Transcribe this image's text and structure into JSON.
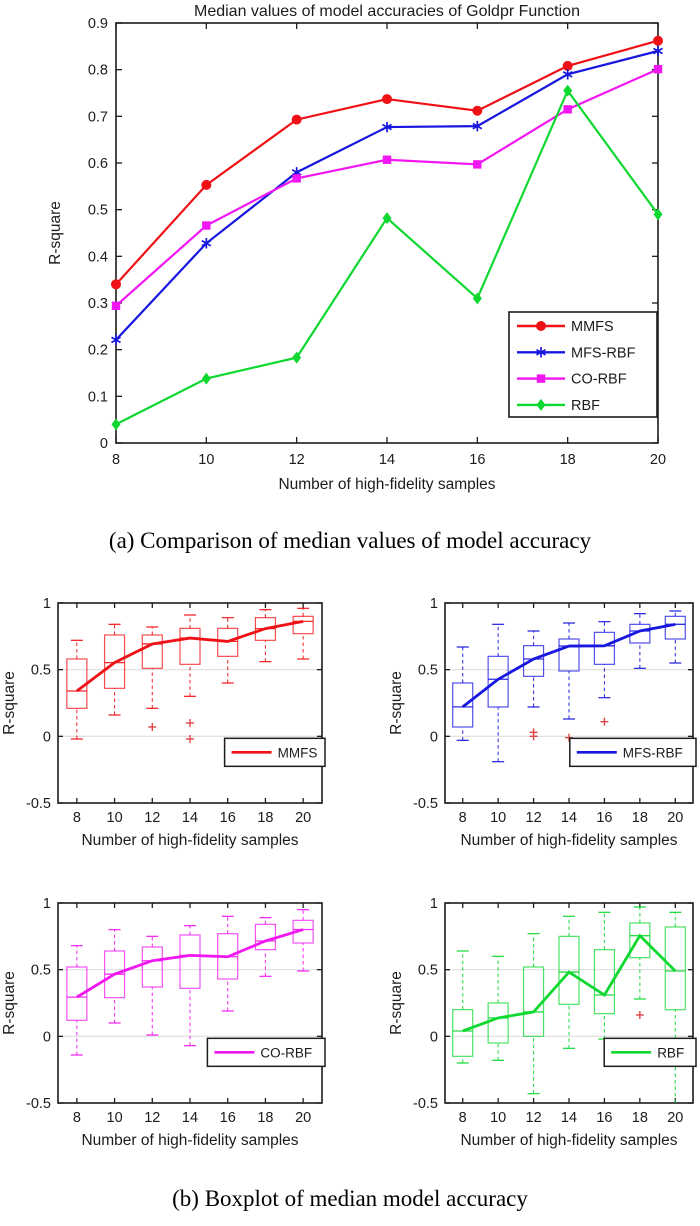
{
  "page": {
    "caption_a": "(a) Comparison of median values of model accuracy",
    "caption_b": "(b) Boxplot of median model accuracy"
  },
  "colors": {
    "mmfs": "#f01116",
    "mfs_rbf": "#1717e0",
    "co_rbf": "#f217f2",
    "rbf": "#0fd830",
    "outlier": "#e04545",
    "gridline": "#dedede",
    "axis": "#1c1c1c"
  },
  "chart_data": [
    {
      "id": "median-line-chart",
      "type": "line",
      "title": "Median values of model accuracies of Goldpr Function",
      "xlabel": "Number of high-fidelity samples",
      "ylabel": "R-square",
      "x": [
        8,
        10,
        12,
        14,
        16,
        18,
        20
      ],
      "xlim": [
        8,
        20
      ],
      "ylim": [
        0,
        0.9
      ],
      "yticks": [
        0,
        0.1,
        0.2,
        0.3,
        0.4,
        0.5,
        0.6,
        0.7,
        0.8,
        0.9
      ],
      "grid": false,
      "legend_position": "lower right",
      "series": [
        {
          "name": "MMFS",
          "color": "#f01116",
          "marker": "circle",
          "values": [
            0.34,
            0.553,
            0.693,
            0.737,
            0.712,
            0.808,
            0.862
          ]
        },
        {
          "name": "MFS-RBF",
          "color": "#1717e0",
          "marker": "asterisk",
          "values": [
            0.221,
            0.428,
            0.58,
            0.677,
            0.679,
            0.79,
            0.84
          ]
        },
        {
          "name": "CO-RBF",
          "color": "#f217f2",
          "marker": "square",
          "values": [
            0.294,
            0.466,
            0.567,
            0.607,
            0.597,
            0.715,
            0.801
          ]
        },
        {
          "name": "RBF",
          "color": "#0fd830",
          "marker": "diamond",
          "values": [
            0.04,
            0.138,
            0.183,
            0.482,
            0.31,
            0.755,
            0.49
          ]
        }
      ]
    },
    {
      "id": "boxplot-mmfs",
      "type": "boxplot",
      "name": "MMFS",
      "color": "#f01116",
      "xlabel": "Number of high-fidelity samples",
      "ylabel": "R-square",
      "categories": [
        8,
        10,
        12,
        14,
        16,
        18,
        20
      ],
      "ylim": [
        -0.5,
        1
      ],
      "yticks": [
        -0.5,
        0,
        0.5,
        1
      ],
      "gridlines": [
        0,
        0.5
      ],
      "legend_position": "lower right",
      "boxes": [
        {
          "whislo": -0.02,
          "q1": 0.21,
          "med": 0.34,
          "q3": 0.58,
          "whishi": 0.72,
          "outliers": []
        },
        {
          "whislo": 0.16,
          "q1": 0.36,
          "med": 0.553,
          "q3": 0.76,
          "whishi": 0.84,
          "outliers": []
        },
        {
          "whislo": 0.21,
          "q1": 0.51,
          "med": 0.693,
          "q3": 0.76,
          "whishi": 0.82,
          "outliers": [
            0.07
          ]
        },
        {
          "whislo": 0.3,
          "q1": 0.54,
          "med": 0.737,
          "q3": 0.81,
          "whishi": 0.91,
          "outliers": [
            0.1,
            -0.02
          ]
        },
        {
          "whislo": 0.4,
          "q1": 0.6,
          "med": 0.712,
          "q3": 0.81,
          "whishi": 0.89,
          "outliers": []
        },
        {
          "whislo": 0.56,
          "q1": 0.72,
          "med": 0.808,
          "q3": 0.89,
          "whishi": 0.95,
          "outliers": []
        },
        {
          "whislo": 0.58,
          "q1": 0.77,
          "med": 0.862,
          "q3": 0.9,
          "whishi": 0.96,
          "outliers": []
        }
      ]
    },
    {
      "id": "boxplot-mfs-rbf",
      "type": "boxplot",
      "name": "MFS-RBF",
      "color": "#1717e0",
      "xlabel": "Number of high-fidelity samples",
      "ylabel": "R-square",
      "categories": [
        8,
        10,
        12,
        14,
        16,
        18,
        20
      ],
      "ylim": [
        -0.5,
        1
      ],
      "yticks": [
        -0.5,
        0,
        0.5,
        1
      ],
      "gridlines": [
        0,
        0.5
      ],
      "legend_position": "lower right",
      "boxes": [
        {
          "whislo": -0.03,
          "q1": 0.07,
          "med": 0.221,
          "q3": 0.4,
          "whishi": 0.67,
          "outliers": []
        },
        {
          "whislo": -0.19,
          "q1": 0.22,
          "med": 0.428,
          "q3": 0.6,
          "whishi": 0.84,
          "outliers": []
        },
        {
          "whislo": 0.22,
          "q1": 0.45,
          "med": 0.58,
          "q3": 0.68,
          "whishi": 0.79,
          "outliers": [
            0.03,
            0.0
          ]
        },
        {
          "whislo": 0.13,
          "q1": 0.49,
          "med": 0.677,
          "q3": 0.73,
          "whishi": 0.85,
          "outliers": [
            -0.01
          ]
        },
        {
          "whislo": 0.29,
          "q1": 0.54,
          "med": 0.679,
          "q3": 0.78,
          "whishi": 0.86,
          "outliers": [
            0.11
          ]
        },
        {
          "whislo": 0.51,
          "q1": 0.7,
          "med": 0.79,
          "q3": 0.84,
          "whishi": 0.92,
          "outliers": []
        },
        {
          "whislo": 0.55,
          "q1": 0.73,
          "med": 0.84,
          "q3": 0.9,
          "whishi": 0.94,
          "outliers": []
        }
      ]
    },
    {
      "id": "boxplot-co-rbf",
      "type": "boxplot",
      "name": "CO-RBF",
      "color": "#f217f2",
      "xlabel": "Number of high-fidelity samples",
      "ylabel": "R-square",
      "categories": [
        8,
        10,
        12,
        14,
        16,
        18,
        20
      ],
      "ylim": [
        -0.5,
        1
      ],
      "yticks": [
        -0.5,
        0,
        0.5,
        1
      ],
      "gridlines": [
        0,
        0.5
      ],
      "legend_position": "lower right",
      "boxes": [
        {
          "whislo": -0.14,
          "q1": 0.12,
          "med": 0.294,
          "q3": 0.52,
          "whishi": 0.68,
          "outliers": []
        },
        {
          "whislo": 0.1,
          "q1": 0.29,
          "med": 0.466,
          "q3": 0.64,
          "whishi": 0.8,
          "outliers": []
        },
        {
          "whislo": 0.01,
          "q1": 0.37,
          "med": 0.567,
          "q3": 0.67,
          "whishi": 0.75,
          "outliers": []
        },
        {
          "whislo": -0.07,
          "q1": 0.36,
          "med": 0.607,
          "q3": 0.76,
          "whishi": 0.83,
          "outliers": []
        },
        {
          "whislo": 0.19,
          "q1": 0.43,
          "med": 0.597,
          "q3": 0.77,
          "whishi": 0.9,
          "outliers": []
        },
        {
          "whislo": 0.45,
          "q1": 0.65,
          "med": 0.715,
          "q3": 0.84,
          "whishi": 0.89,
          "outliers": []
        },
        {
          "whislo": 0.49,
          "q1": 0.7,
          "med": 0.801,
          "q3": 0.87,
          "whishi": 0.95,
          "outliers": []
        }
      ]
    },
    {
      "id": "boxplot-rbf",
      "type": "boxplot",
      "name": "RBF",
      "color": "#0fd830",
      "xlabel": "Number of high-fidelity samples",
      "ylabel": "R-square",
      "categories": [
        8,
        10,
        12,
        14,
        16,
        18,
        20
      ],
      "ylim": [
        -0.5,
        1
      ],
      "yticks": [
        -0.5,
        0,
        0.5,
        1
      ],
      "gridlines": [
        0,
        0.5
      ],
      "legend_position": "lower right",
      "boxes": [
        {
          "whislo": -0.2,
          "q1": -0.15,
          "med": 0.04,
          "q3": 0.2,
          "whishi": 0.64,
          "outliers": []
        },
        {
          "whislo": -0.18,
          "q1": -0.05,
          "med": 0.138,
          "q3": 0.25,
          "whishi": 0.6,
          "outliers": []
        },
        {
          "whislo": -0.43,
          "q1": 0.0,
          "med": 0.183,
          "q3": 0.52,
          "whishi": 0.77,
          "outliers": []
        },
        {
          "whislo": -0.09,
          "q1": 0.24,
          "med": 0.482,
          "q3": 0.75,
          "whishi": 0.9,
          "outliers": []
        },
        {
          "whislo": -0.02,
          "q1": 0.17,
          "med": 0.31,
          "q3": 0.65,
          "whishi": 0.93,
          "outliers": []
        },
        {
          "whislo": 0.28,
          "q1": 0.59,
          "med": 0.755,
          "q3": 0.85,
          "whishi": 0.97,
          "outliers": [
            0.16
          ]
        },
        {
          "whislo": -0.5,
          "q1": 0.2,
          "med": 0.49,
          "q3": 0.82,
          "whishi": 0.93,
          "outliers": []
        }
      ]
    }
  ]
}
